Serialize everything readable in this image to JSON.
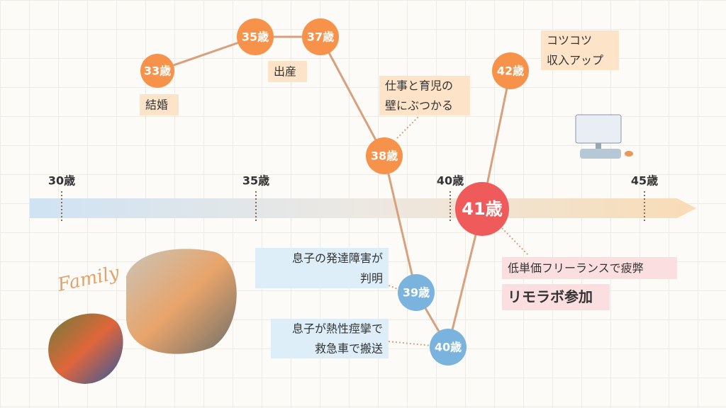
{
  "axis": {
    "ticks": [
      "30歳",
      "35歳",
      "40歳",
      "45歳"
    ]
  },
  "nodes": [
    {
      "label": "33歳"
    },
    {
      "label": "35歳"
    },
    {
      "label": "37歳"
    },
    {
      "label": "38歳"
    },
    {
      "label": "39歳"
    },
    {
      "label": "40歳"
    },
    {
      "label": "41歳"
    },
    {
      "label": "42歳"
    }
  ],
  "notes": [
    {
      "lines": [
        "結婚"
      ]
    },
    {
      "lines": [
        "出産"
      ]
    },
    {
      "lines": [
        "仕事と育児の",
        "壁にぶつかる"
      ]
    },
    {
      "lines": [
        "コツコツ",
        "収入アップ"
      ]
    },
    {
      "lines": [
        "息子の発達障害が",
        "判明"
      ]
    },
    {
      "lines": [
        "息子が熱性痙攣で",
        "救急車で搬送"
      ]
    },
    {
      "lines": [
        "低単価フリーランスで疲弊"
      ]
    },
    {
      "lines": [
        "リモラボ参加"
      ]
    }
  ],
  "family": "Family"
}
